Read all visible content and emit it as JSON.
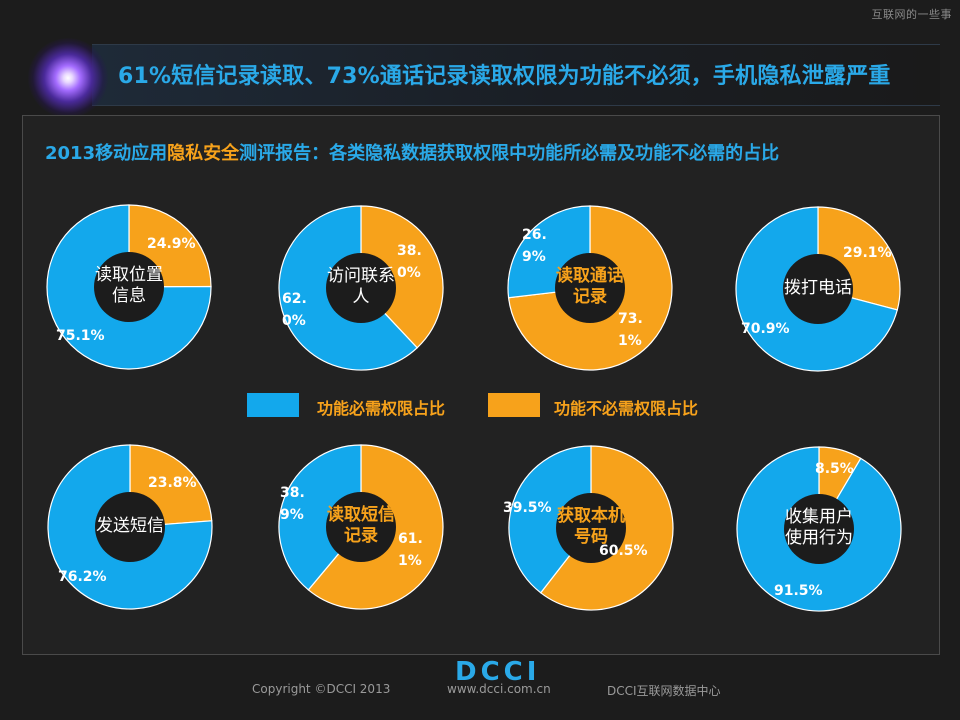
{
  "watermark": "互联网的一些事",
  "header": {
    "title": "61%短信记录读取、73%通话记录读取权限为功能不必须，手机隐私泄露严重",
    "subtitle_pre": "2013移动应用",
    "subtitle_hl": "隐私安全",
    "subtitle_post": "测评报告：各类隐私数据获取权限中功能所必需及功能不必需的占比"
  },
  "colors": {
    "required": "#13a8ec",
    "not_required": "#f7a21b",
    "hole": "#1c1c1c",
    "label_orange": "#f7a21b"
  },
  "legend": {
    "required": "功能必需权限占比",
    "not_required": "功能不必需权限占比"
  },
  "chart_data": {
    "type": "pie",
    "style": "donut",
    "legend_placement": "center",
    "series_labels": [
      "功能必需权限占比",
      "功能不必需权限占比"
    ],
    "charts": [
      {
        "label_lines": [
          "读取位置",
          "信息"
        ],
        "label_color": "white",
        "required": 75.1,
        "not_required": 24.9,
        "required_label": "75.1%",
        "not_required_label": "24.9%"
      },
      {
        "label_lines": [
          "访问联系",
          "人"
        ],
        "label_color": "white",
        "required": 62.0,
        "not_required": 38.0,
        "required_label": "62.0%",
        "not_required_label": "38.0%"
      },
      {
        "label_lines": [
          "读取通话",
          "记录"
        ],
        "label_color": "orange",
        "required": 26.9,
        "not_required": 73.1,
        "required_label": "26.9%",
        "not_required_label": "73.1%"
      },
      {
        "label_lines": [
          "拨打电话"
        ],
        "label_color": "white",
        "required": 70.9,
        "not_required": 29.1,
        "required_label": "70.9%",
        "not_required_label": "29.1%"
      },
      {
        "label_lines": [
          "发送短信"
        ],
        "label_color": "white",
        "required": 76.2,
        "not_required": 23.8,
        "required_label": "76.2%",
        "not_required_label": "23.8%"
      },
      {
        "label_lines": [
          "读取短信",
          "记录"
        ],
        "label_color": "orange",
        "required": 38.9,
        "not_required": 61.1,
        "required_label": "38.9%",
        "not_required_label": "61.1%"
      },
      {
        "label_lines": [
          "获取本机",
          "号码"
        ],
        "label_color": "orange",
        "required": 39.5,
        "not_required": 60.5,
        "required_label": "39.5%",
        "not_required_label": "60.5%"
      },
      {
        "label_lines": [
          "收集用户",
          "使用行为"
        ],
        "label_color": "white",
        "required": 91.5,
        "not_required": 8.5,
        "required_label": "91.5%",
        "not_required_label": "8.5%"
      }
    ]
  },
  "footer": {
    "logo": "DCCI",
    "copyright": "Copyright ©DCCI 2013",
    "url": "www.dcci.com.cn",
    "org": "DCCI互联网数据中心"
  }
}
